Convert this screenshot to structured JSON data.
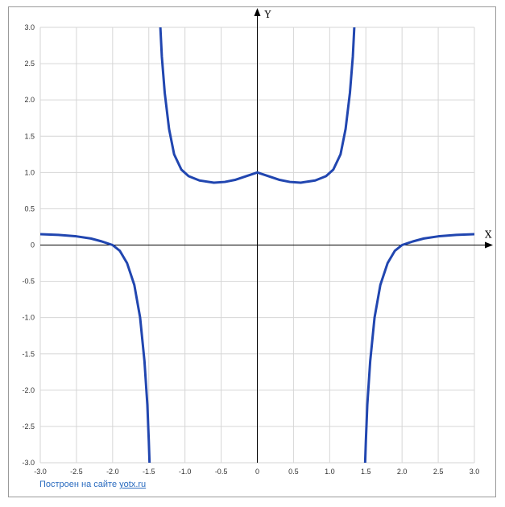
{
  "chart_data": {
    "type": "line",
    "xlabel": "X",
    "ylabel": "Y",
    "xlim": [
      -3.0,
      3.0
    ],
    "ylim": [
      -3.0,
      3.0
    ],
    "grid": true,
    "x_ticks": [
      "-3.0",
      "-2.5",
      "-2.0",
      "-1.5",
      "-1.0",
      "-0.5",
      "0",
      "0.5",
      "1.0",
      "1.5",
      "2.0",
      "2.5",
      "3.0"
    ],
    "y_ticks": [
      "3.0",
      "2.5",
      "2.0",
      "1.5",
      "1.0",
      "0.5",
      "0",
      "-0.5",
      "-1.0",
      "-1.5",
      "-2.0",
      "-2.5",
      "-3.0"
    ],
    "series_color": "#2146b0",
    "series": [
      {
        "points": [
          [
            -3.0,
            0.15
          ],
          [
            -2.75,
            0.14
          ],
          [
            -2.5,
            0.12
          ],
          [
            -2.3,
            0.09
          ],
          [
            -2.15,
            0.05
          ],
          [
            -2.0,
            0.0
          ],
          [
            -1.9,
            -0.08
          ],
          [
            -1.8,
            -0.25
          ],
          [
            -1.7,
            -0.55
          ],
          [
            -1.62,
            -1.0
          ],
          [
            -1.56,
            -1.6
          ],
          [
            -1.52,
            -2.2
          ],
          [
            -1.5,
            -2.7
          ],
          [
            -1.49,
            -3.0
          ]
        ]
      },
      {
        "points": [
          [
            -1.34,
            3.0
          ],
          [
            -1.32,
            2.6
          ],
          [
            -1.28,
            2.1
          ],
          [
            -1.22,
            1.6
          ],
          [
            -1.15,
            1.25
          ],
          [
            -1.05,
            1.04
          ],
          [
            -0.95,
            0.95
          ],
          [
            -0.8,
            0.89
          ],
          [
            -0.6,
            0.86
          ],
          [
            -0.45,
            0.87
          ],
          [
            -0.3,
            0.9
          ],
          [
            -0.15,
            0.95
          ],
          [
            0.0,
            1.0
          ],
          [
            0.15,
            0.95
          ],
          [
            0.3,
            0.9
          ],
          [
            0.45,
            0.87
          ],
          [
            0.6,
            0.86
          ],
          [
            0.8,
            0.89
          ],
          [
            0.95,
            0.95
          ],
          [
            1.05,
            1.04
          ],
          [
            1.15,
            1.25
          ],
          [
            1.22,
            1.6
          ],
          [
            1.28,
            2.1
          ],
          [
            1.32,
            2.6
          ],
          [
            1.34,
            3.0
          ]
        ]
      },
      {
        "points": [
          [
            1.49,
            -3.0
          ],
          [
            1.5,
            -2.7
          ],
          [
            1.52,
            -2.2
          ],
          [
            1.56,
            -1.6
          ],
          [
            1.62,
            -1.0
          ],
          [
            1.7,
            -0.55
          ],
          [
            1.8,
            -0.25
          ],
          [
            1.9,
            -0.08
          ],
          [
            2.0,
            0.0
          ],
          [
            2.15,
            0.05
          ],
          [
            2.3,
            0.09
          ],
          [
            2.5,
            0.12
          ],
          [
            2.75,
            0.14
          ],
          [
            3.0,
            0.15
          ]
        ]
      }
    ]
  },
  "credit": {
    "text": "Построен на сайте ",
    "link": "yotx.ru"
  }
}
